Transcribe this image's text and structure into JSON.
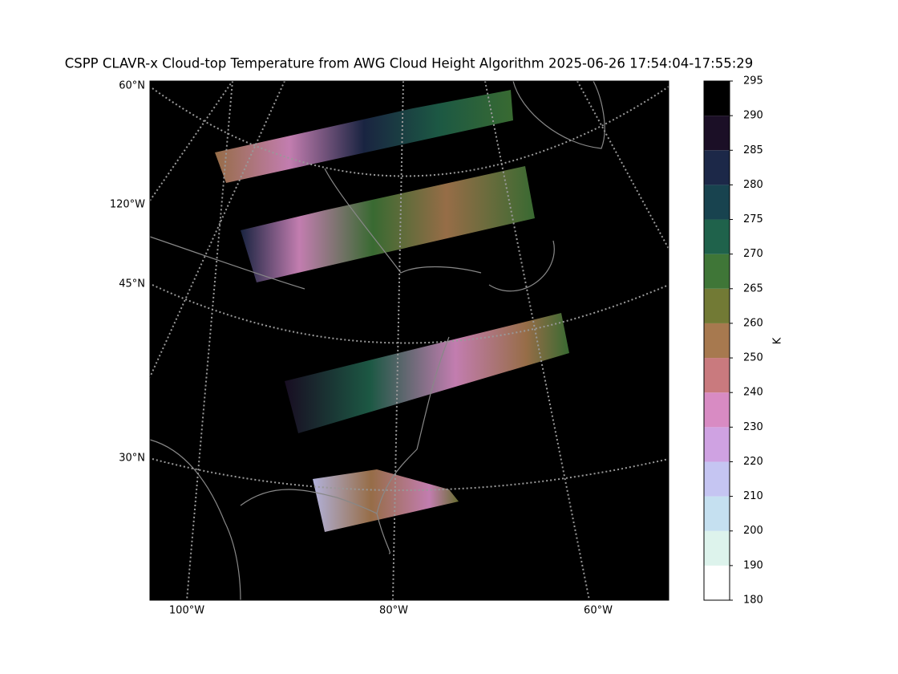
{
  "map": {
    "title": "CSPP CLAVR-x Cloud-top Temperature from AWG Cloud Height Algorithm 2025-06-26 17:54:04-17:55:29",
    "lat_labels": [
      "60°N",
      "120°W",
      "45°N",
      "30°N"
    ],
    "lon_labels": [
      "100°W",
      "80°W",
      "60°W"
    ],
    "colorbar": {
      "label": "K",
      "ticks": [
        180,
        190,
        200,
        210,
        220,
        230,
        240,
        250,
        260,
        265,
        270,
        275,
        280,
        285,
        290,
        295
      ],
      "colors": [
        "#ffffff",
        "#ddf3ec",
        "#c5e0f0",
        "#c5c5f2",
        "#cfa2e2",
        "#d88bc3",
        "#c97a7e",
        "#a7794f",
        "#727a35",
        "#3f7637",
        "#1f624b",
        "#18434f",
        "#1c2848",
        "#1b0f26",
        "#000000"
      ]
    }
  }
}
